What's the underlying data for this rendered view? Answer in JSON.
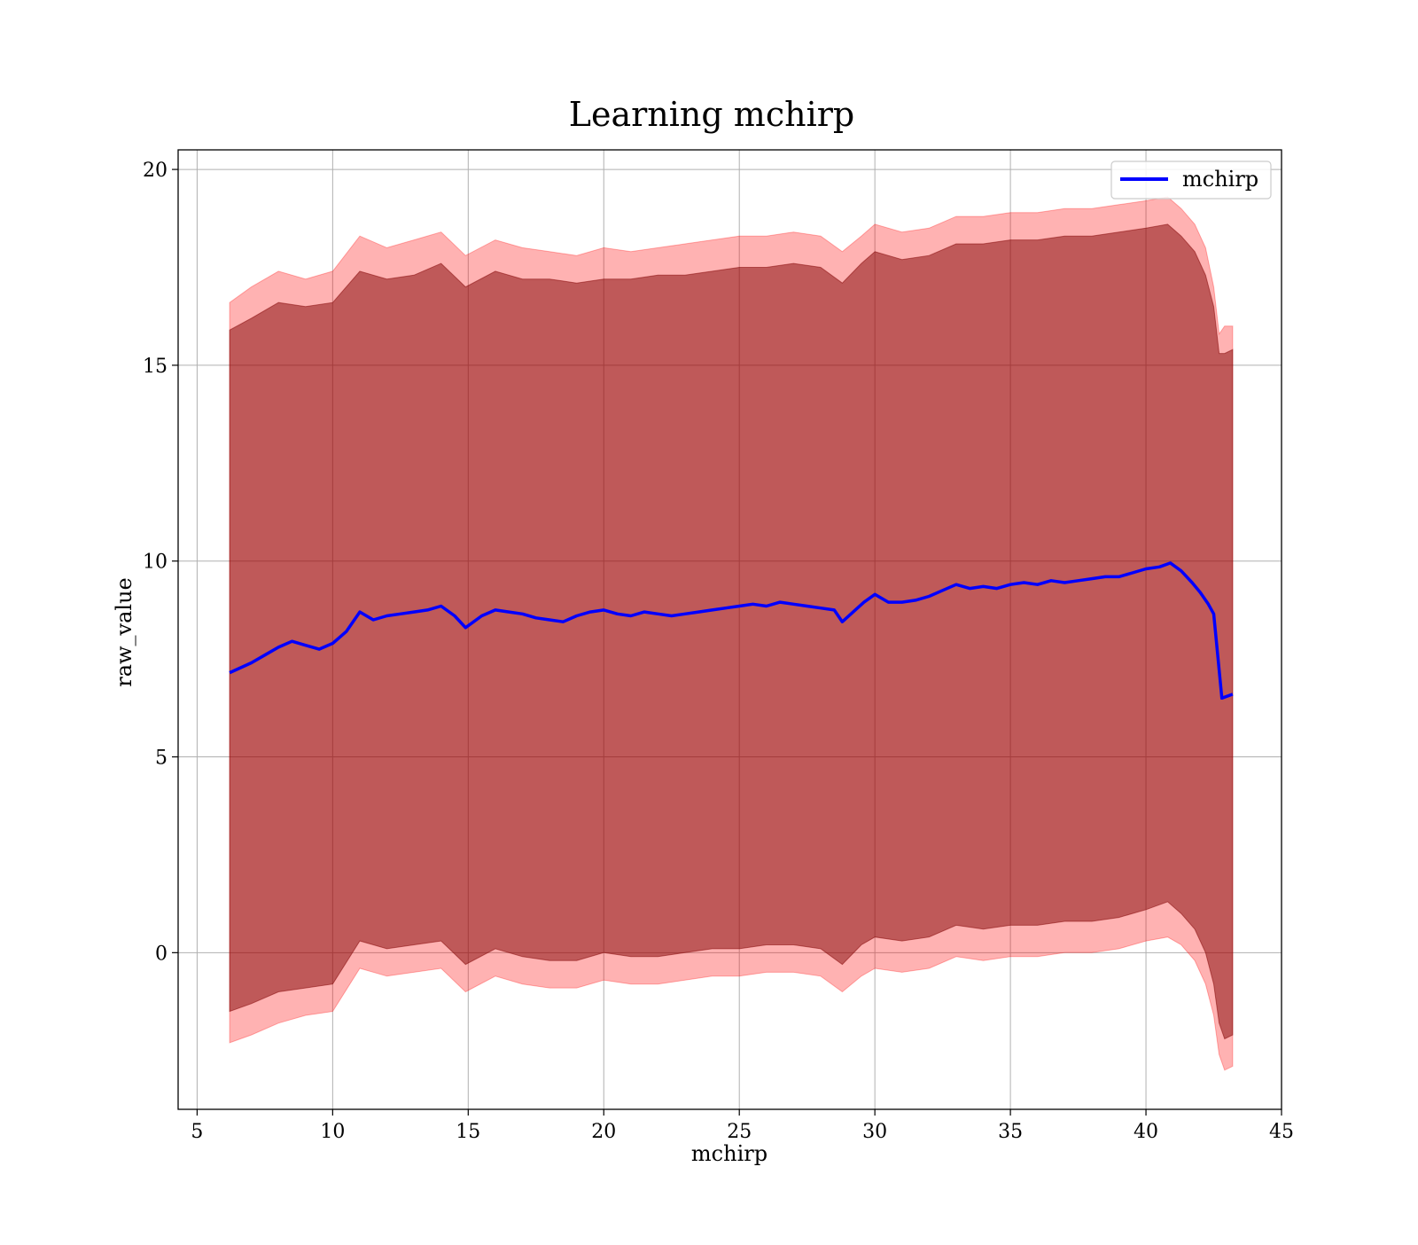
{
  "chart_data": {
    "type": "line",
    "title": "Learning mchirp",
    "xlabel": "mchirp",
    "ylabel": "raw_value",
    "xlim": [
      4.3,
      45
    ],
    "ylim": [
      -4.0,
      20.5
    ],
    "xticks": [
      5,
      10,
      15,
      20,
      25,
      30,
      35,
      40,
      45
    ],
    "yticks": [
      0,
      5,
      10,
      15,
      20
    ],
    "grid": true,
    "legend": {
      "position": "top-right",
      "entries": [
        "mchirp"
      ]
    },
    "colors": {
      "line": "#0000ff",
      "band_outer": "#ff0000",
      "band_outer_opacity": 0.3,
      "band_inner": "#800000",
      "band_inner_opacity": 0.5
    },
    "series": [
      {
        "name": "mchirp",
        "type": "line",
        "x": [
          6.2,
          7.0,
          7.5,
          8.0,
          8.5,
          9.0,
          9.5,
          10.0,
          10.5,
          11.0,
          11.5,
          12.0,
          12.5,
          13.0,
          13.5,
          14.0,
          14.5,
          14.9,
          15.5,
          16.0,
          16.5,
          17.0,
          17.5,
          18.0,
          18.5,
          19.0,
          19.5,
          20.0,
          20.5,
          21.0,
          21.5,
          22.0,
          22.5,
          23.0,
          23.5,
          24.0,
          24.5,
          25.0,
          25.5,
          26.0,
          26.5,
          27.0,
          27.5,
          28.0,
          28.5,
          28.8,
          29.2,
          29.6,
          30.0,
          30.5,
          31.0,
          31.5,
          32.0,
          32.5,
          33.0,
          33.5,
          34.0,
          34.5,
          35.0,
          35.5,
          36.0,
          36.5,
          37.0,
          37.5,
          38.0,
          38.5,
          39.0,
          39.5,
          40.0,
          40.5,
          40.9,
          41.3,
          41.7,
          42.0,
          42.3,
          42.5,
          42.8,
          43.2
        ],
        "y": [
          7.15,
          7.4,
          7.6,
          7.8,
          7.95,
          7.85,
          7.75,
          7.9,
          8.2,
          8.7,
          8.5,
          8.6,
          8.65,
          8.7,
          8.75,
          8.85,
          8.6,
          8.3,
          8.6,
          8.75,
          8.7,
          8.65,
          8.55,
          8.5,
          8.45,
          8.6,
          8.7,
          8.75,
          8.65,
          8.6,
          8.7,
          8.65,
          8.6,
          8.65,
          8.7,
          8.75,
          8.8,
          8.85,
          8.9,
          8.85,
          8.95,
          8.9,
          8.85,
          8.8,
          8.75,
          8.45,
          8.7,
          8.95,
          9.15,
          8.95,
          8.95,
          9.0,
          9.1,
          9.25,
          9.4,
          9.3,
          9.35,
          9.3,
          9.4,
          9.45,
          9.4,
          9.5,
          9.45,
          9.5,
          9.55,
          9.6,
          9.6,
          9.7,
          9.8,
          9.85,
          9.95,
          9.75,
          9.45,
          9.2,
          8.9,
          8.65,
          6.5,
          6.6
        ]
      },
      {
        "name": "",
        "type": "band",
        "x": [
          6.2,
          7.0,
          8.0,
          9.0,
          10.0,
          11.0,
          12.0,
          13.0,
          14.0,
          14.9,
          16.0,
          17.0,
          18.0,
          19.0,
          20.0,
          21.0,
          22.0,
          23.0,
          24.0,
          25.0,
          26.0,
          27.0,
          28.0,
          28.8,
          29.5,
          30.0,
          31.0,
          32.0,
          33.0,
          34.0,
          35.0,
          36.0,
          37.0,
          38.0,
          39.0,
          40.0,
          40.8,
          41.3,
          41.8,
          42.2,
          42.5,
          42.7,
          42.9,
          43.2
        ],
        "upper": [
          16.6,
          17.0,
          17.4,
          17.2,
          17.4,
          18.3,
          18.0,
          18.2,
          18.4,
          17.8,
          18.2,
          18.0,
          17.9,
          17.8,
          18.0,
          17.9,
          18.0,
          18.1,
          18.2,
          18.3,
          18.3,
          18.4,
          18.3,
          17.9,
          18.3,
          18.6,
          18.4,
          18.5,
          18.8,
          18.8,
          18.9,
          18.9,
          19.0,
          19.0,
          19.1,
          19.2,
          19.3,
          19.0,
          18.6,
          18.0,
          17.0,
          15.8,
          16.0,
          16.0
        ],
        "lower": [
          -2.3,
          -2.1,
          -1.8,
          -1.6,
          -1.5,
          -0.4,
          -0.6,
          -0.5,
          -0.4,
          -1.0,
          -0.6,
          -0.8,
          -0.9,
          -0.9,
          -0.7,
          -0.8,
          -0.8,
          -0.7,
          -0.6,
          -0.6,
          -0.5,
          -0.5,
          -0.6,
          -1.0,
          -0.6,
          -0.4,
          -0.5,
          -0.4,
          -0.1,
          -0.2,
          -0.1,
          -0.1,
          0.0,
          0.0,
          0.1,
          0.3,
          0.4,
          0.2,
          -0.2,
          -0.8,
          -1.6,
          -2.6,
          -3.0,
          -2.9
        ]
      },
      {
        "name": "",
        "type": "band",
        "x": [
          6.2,
          7.0,
          8.0,
          9.0,
          10.0,
          11.0,
          12.0,
          13.0,
          14.0,
          14.9,
          16.0,
          17.0,
          18.0,
          19.0,
          20.0,
          21.0,
          22.0,
          23.0,
          24.0,
          25.0,
          26.0,
          27.0,
          28.0,
          28.8,
          29.5,
          30.0,
          31.0,
          32.0,
          33.0,
          34.0,
          35.0,
          36.0,
          37.0,
          38.0,
          39.0,
          40.0,
          40.8,
          41.3,
          41.8,
          42.2,
          42.5,
          42.7,
          42.9,
          43.2
        ],
        "upper": [
          15.9,
          16.2,
          16.6,
          16.5,
          16.6,
          17.4,
          17.2,
          17.3,
          17.6,
          17.0,
          17.4,
          17.2,
          17.2,
          17.1,
          17.2,
          17.2,
          17.3,
          17.3,
          17.4,
          17.5,
          17.5,
          17.6,
          17.5,
          17.1,
          17.6,
          17.9,
          17.7,
          17.8,
          18.1,
          18.1,
          18.2,
          18.2,
          18.3,
          18.3,
          18.4,
          18.5,
          18.6,
          18.3,
          17.9,
          17.3,
          16.5,
          15.3,
          15.3,
          15.4
        ],
        "lower": [
          -1.5,
          -1.3,
          -1.0,
          -0.9,
          -0.8,
          0.3,
          0.1,
          0.2,
          0.3,
          -0.3,
          0.1,
          -0.1,
          -0.2,
          -0.2,
          0.0,
          -0.1,
          -0.1,
          0.0,
          0.1,
          0.1,
          0.2,
          0.2,
          0.1,
          -0.3,
          0.2,
          0.4,
          0.3,
          0.4,
          0.7,
          0.6,
          0.7,
          0.7,
          0.8,
          0.8,
          0.9,
          1.1,
          1.3,
          1.0,
          0.6,
          0.0,
          -0.8,
          -1.8,
          -2.2,
          -2.1
        ]
      }
    ]
  }
}
